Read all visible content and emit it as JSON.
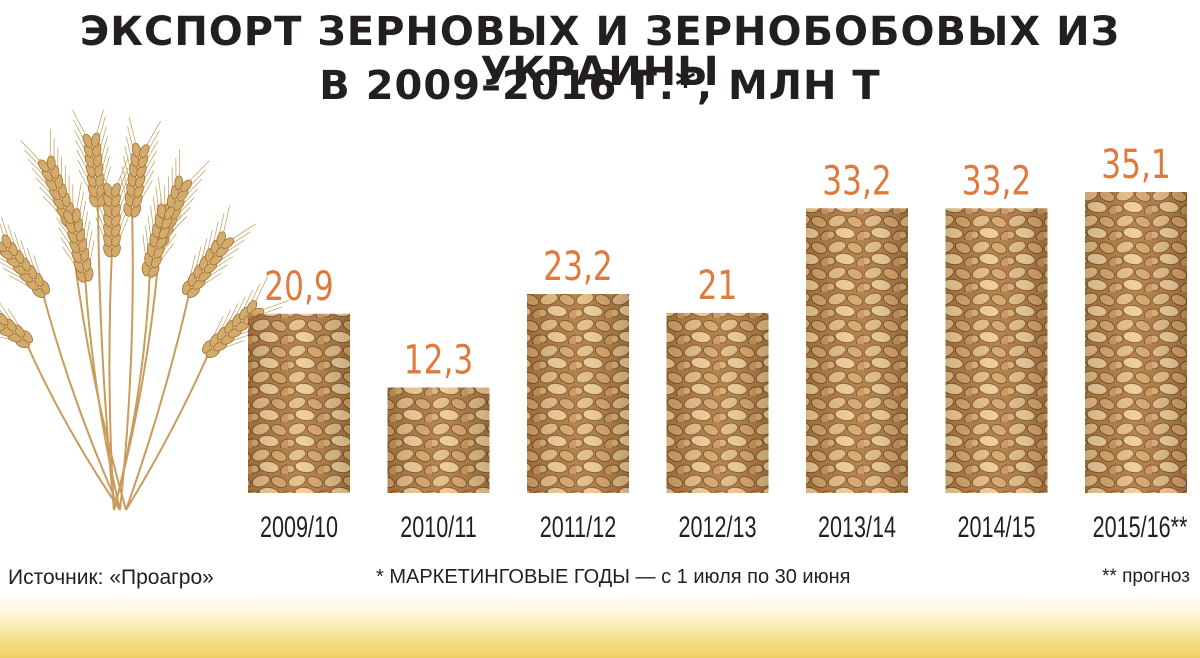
{
  "title": {
    "line1": "ЭКСПОРТ ЗЕРНОВЫХ И ЗЕРНОБОБОВЫХ ИЗ УКРАИНЫ",
    "line2": "В 2009–2016 Г.*, МЛН Т"
  },
  "footer": {
    "source": "Источник: «Проагро»",
    "note_marketing": "* МАРКЕТИНГОВЫЕ ГОДЫ  — с 1 июля по 30 июня",
    "note_forecast": "** прогноз"
  },
  "colors": {
    "value_label": "#dd7a3c",
    "axis_label": "#231f20",
    "grain_light": "#e6c08a",
    "grain_mid": "#c58f52",
    "grain_dark": "#7a4e24",
    "wheat": "#d4ab6a"
  },
  "chart_data": {
    "type": "bar",
    "categories": [
      "2009/10",
      "2010/11",
      "2011/12",
      "2012/13",
      "2013/14",
      "2014/15",
      "2015/16**"
    ],
    "values": [
      20.9,
      12.3,
      23.2,
      21,
      33.2,
      33.2,
      35.1
    ],
    "value_labels": [
      "20,9",
      "12,3",
      "23,2",
      "21",
      "33,2",
      "33,2",
      "35,1"
    ],
    "ylim": [
      0,
      35.1
    ],
    "grid": false,
    "legend": "none",
    "decoration": "wheat-bundle-icon"
  }
}
